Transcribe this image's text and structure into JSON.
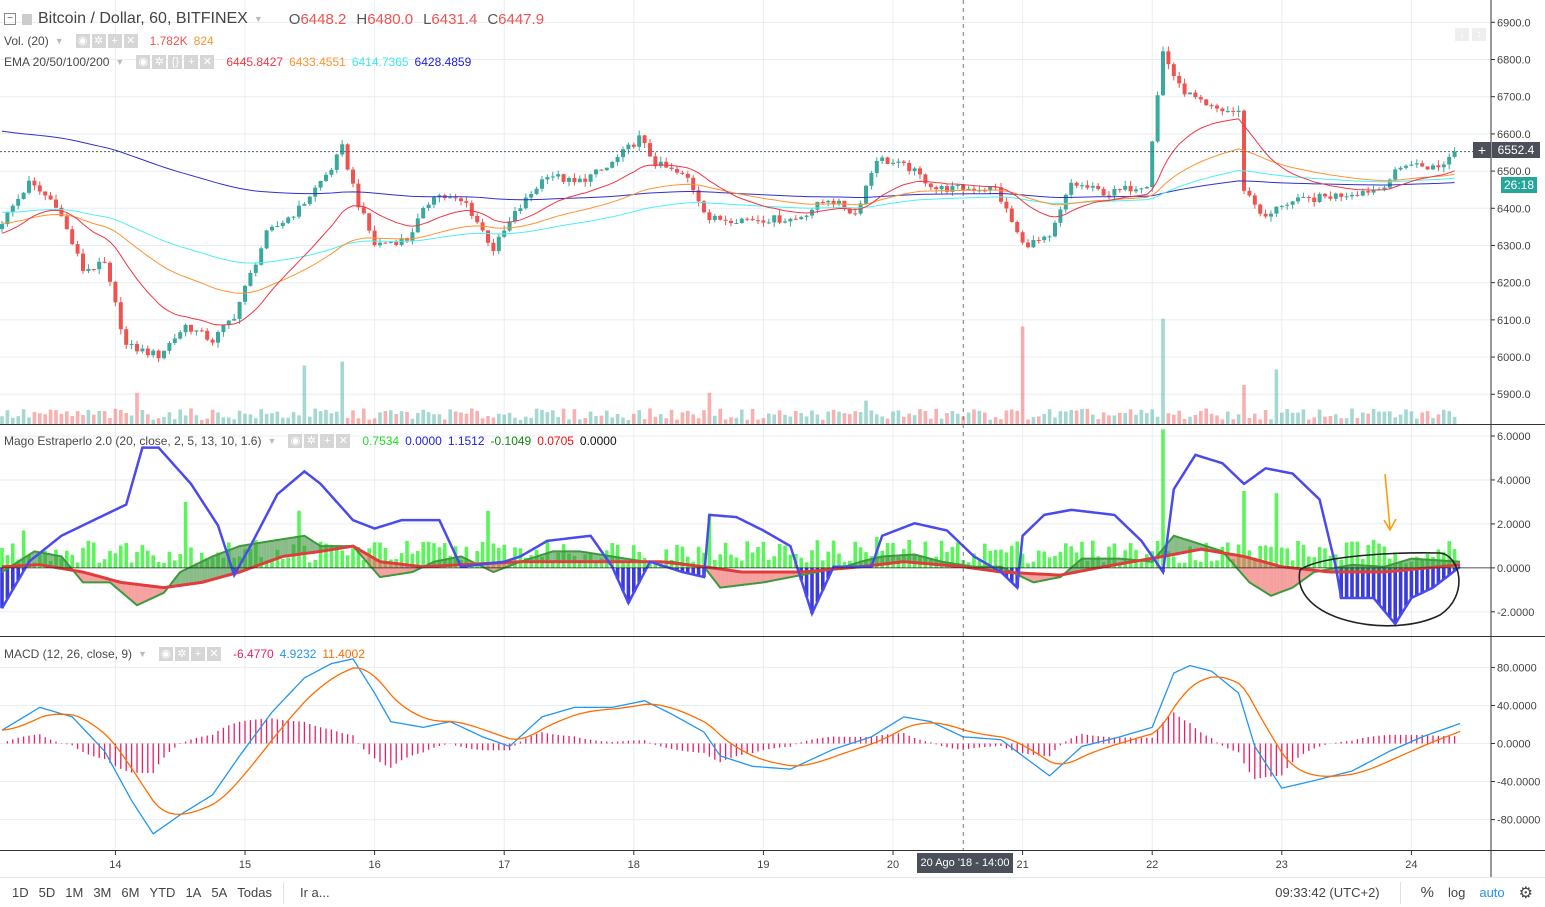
{
  "header": {
    "title": "Bitcoin / Dollar, 60, BITFINEX",
    "o_label": "O",
    "o": "6448.2",
    "h_label": "H",
    "h": "6480.0",
    "l_label": "L",
    "l": "6431.4",
    "c_label": "C",
    "c": "6447.9"
  },
  "volume_legend": {
    "name": "Vol. (20)",
    "v1": "1.782K",
    "v2": "824"
  },
  "ema_legend": {
    "name": "EMA 20/50/100/200",
    "v1": "6445.8427",
    "v2": "6433.4551",
    "v3": "6414.7365",
    "v4": "6428.4859"
  },
  "mago_legend": {
    "name": "Mago Estraperlo 2.0 (20, close, 2, 5, 13, 10, 1.6)",
    "v1": "0.7534",
    "v2": "0.0000",
    "v3": "1.1512",
    "v4": "-0.1049",
    "v5": "0.0705",
    "v6": "0.0000"
  },
  "macd_legend": {
    "name": "MACD (12, 26, close, 9)",
    "v1": "-6.4770",
    "v2": "4.9232",
    "v3": "11.4002"
  },
  "last_price": "6552.4",
  "countdown": "26:18",
  "crosshair_label": "20 Ago '18 - 14:00",
  "toolbar": {
    "ranges": [
      "1D",
      "5D",
      "1M",
      "3M",
      "6M",
      "YTD",
      "1A",
      "5A",
      "Todas"
    ],
    "goto": "Ir a...",
    "clock": "09:33:42 (UTC+2)",
    "percent": "%",
    "log": "log",
    "auto": "auto"
  },
  "colors": {
    "up": "#3aa89c",
    "down": "#ef5350",
    "ema20": "#f23645",
    "ema50": "#ff9330",
    "ema100": "#4df0f0",
    "ema200": "#3030d0",
    "mago_blue": "#4a4aee",
    "mago_green": "#3c9a3c",
    "mago_red": "#e03c3c",
    "mago_bar": "#5af55a",
    "macd": "#2196f3",
    "signal": "#ff6d00",
    "macd_hist": "#e91e63"
  },
  "chart_data": {
    "type": "candlestick",
    "interval_hours": 1,
    "bars": 270,
    "x_ticks": [
      {
        "hour": 21,
        "label": "14"
      },
      {
        "hour": 45,
        "label": "15"
      },
      {
        "hour": 69,
        "label": "16"
      },
      {
        "hour": 93,
        "label": "17"
      },
      {
        "hour": 117,
        "label": "18"
      },
      {
        "hour": 141,
        "label": "19"
      },
      {
        "hour": 165,
        "label": "20"
      },
      {
        "hour": 189,
        "label": "21"
      },
      {
        "hour": 213,
        "label": "22"
      },
      {
        "hour": 237,
        "label": "23"
      },
      {
        "hour": 261,
        "label": "24"
      }
    ],
    "crosshair_hour": 178,
    "price": {
      "ylim": [
        5820,
        6960
      ],
      "ticks": [
        6900,
        6800,
        6700,
        6600,
        6500,
        6400,
        6300,
        6200,
        6100,
        6000,
        5900
      ],
      "close_keypoints": [
        [
          0,
          6344
        ],
        [
          6,
          6467
        ],
        [
          11,
          6412
        ],
        [
          16,
          6235
        ],
        [
          20,
          6249
        ],
        [
          24,
          6030
        ],
        [
          30,
          6004
        ],
        [
          35,
          6085
        ],
        [
          40,
          6044
        ],
        [
          44,
          6112
        ],
        [
          50,
          6330
        ],
        [
          56,
          6398
        ],
        [
          62,
          6508
        ],
        [
          64,
          6562
        ],
        [
          67,
          6412
        ],
        [
          70,
          6303
        ],
        [
          76,
          6317
        ],
        [
          81,
          6439
        ],
        [
          87,
          6412
        ],
        [
          92,
          6290
        ],
        [
          96,
          6385
        ],
        [
          102,
          6494
        ],
        [
          107,
          6467
        ],
        [
          113,
          6508
        ],
        [
          119,
          6589
        ],
        [
          122,
          6521
        ],
        [
          128,
          6480
        ],
        [
          132,
          6371
        ],
        [
          138,
          6371
        ],
        [
          143,
          6371
        ],
        [
          148,
          6371
        ],
        [
          154,
          6426
        ],
        [
          159,
          6385
        ],
        [
          163,
          6535
        ],
        [
          169,
          6508
        ],
        [
          174,
          6453
        ],
        [
          180,
          6453
        ],
        [
          185,
          6453
        ],
        [
          190,
          6303
        ],
        [
          195,
          6317
        ],
        [
          199,
          6467
        ],
        [
          206,
          6439
        ],
        [
          213,
          6467
        ],
        [
          216,
          6821
        ],
        [
          219,
          6726
        ],
        [
          224,
          6671
        ],
        [
          230,
          6657
        ],
        [
          231,
          6453
        ],
        [
          235,
          6371
        ],
        [
          238,
          6412
        ],
        [
          244,
          6426
        ],
        [
          250,
          6439
        ],
        [
          256,
          6453
        ],
        [
          261,
          6521
        ],
        [
          267,
          6508
        ],
        [
          270,
          6552.4
        ]
      ],
      "ema_seeds": {
        "ema20": 6330,
        "ema50": 6360,
        "ema100": 6390,
        "ema200": 6610
      }
    },
    "volume": {
      "unit": "K",
      "base": [
        1,
        4
      ],
      "spikes": [
        [
          25,
          8
        ],
        [
          56,
          15
        ],
        [
          63,
          16
        ],
        [
          131,
          8
        ],
        [
          160,
          6
        ],
        [
          189,
          25
        ],
        [
          215,
          27
        ],
        [
          230,
          10
        ],
        [
          236,
          14
        ]
      ]
    },
    "mago": {
      "ylim": [
        -3.1,
        6.5
      ],
      "ticks": [
        6,
        4,
        2,
        0,
        -2
      ],
      "blue": [
        [
          0,
          -1.84
        ],
        [
          5,
          0.28
        ],
        [
          11,
          1.46
        ],
        [
          19,
          2.41
        ],
        [
          23,
          2.88
        ],
        [
          26,
          5.47
        ],
        [
          29,
          5.47
        ],
        [
          35,
          3.82
        ],
        [
          40,
          1.93
        ],
        [
          43,
          -0.33
        ],
        [
          46,
          0.99
        ],
        [
          51,
          3.35
        ],
        [
          56,
          4.39
        ],
        [
          59,
          3.82
        ],
        [
          65,
          2.17
        ],
        [
          69,
          1.79
        ],
        [
          74,
          2.17
        ],
        [
          81,
          2.17
        ],
        [
          85,
          0.05
        ],
        [
          93,
          0.28
        ],
        [
          96,
          0.52
        ],
        [
          101,
          1.23
        ],
        [
          109,
          1.46
        ],
        [
          113,
          0.05
        ],
        [
          116,
          -1.6
        ],
        [
          120,
          0.28
        ],
        [
          126,
          -0.19
        ],
        [
          130,
          -0.42
        ],
        [
          131,
          2.41
        ],
        [
          136,
          2.31
        ],
        [
          141,
          1.7
        ],
        [
          146,
          0.99
        ],
        [
          150,
          -2.08
        ],
        [
          154,
          0.05
        ],
        [
          161,
          0.05
        ],
        [
          163,
          1.46
        ],
        [
          169,
          2.03
        ],
        [
          175,
          1.7
        ],
        [
          180,
          0.52
        ],
        [
          185,
          -0.19
        ],
        [
          188,
          -0.9
        ],
        [
          189,
          1.46
        ],
        [
          193,
          2.41
        ],
        [
          198,
          2.64
        ],
        [
          206,
          2.41
        ],
        [
          211,
          1.23
        ],
        [
          215,
          -0.19
        ],
        [
          217,
          3.58
        ],
        [
          221,
          5.14
        ],
        [
          226,
          4.76
        ],
        [
          230,
          3.82
        ],
        [
          234,
          4.53
        ],
        [
          239,
          4.29
        ],
        [
          244,
          3.11
        ],
        [
          247,
          0.05
        ],
        [
          248,
          -1.37
        ],
        [
          254,
          -1.37
        ],
        [
          258,
          -2.55
        ],
        [
          261,
          -1.37
        ],
        [
          265,
          -0.9
        ],
        [
          270,
          0.05
        ]
      ],
      "green": [
        [
          0,
          -0.19
        ],
        [
          6,
          0.75
        ],
        [
          11,
          0.52
        ],
        [
          15,
          -0.66
        ],
        [
          20,
          -0.66
        ],
        [
          25,
          -1.7
        ],
        [
          30,
          -1.13
        ],
        [
          33,
          -0.19
        ],
        [
          39,
          0.52
        ],
        [
          44,
          0.99
        ],
        [
          50,
          1.23
        ],
        [
          56,
          1.46
        ],
        [
          59,
          0.99
        ],
        [
          65,
          0.99
        ],
        [
          70,
          -0.42
        ],
        [
          76,
          -0.19
        ],
        [
          80,
          0.28
        ],
        [
          85,
          0.52
        ],
        [
          91,
          -0.19
        ],
        [
          96,
          0.28
        ],
        [
          102,
          0.75
        ],
        [
          107,
          0.75
        ],
        [
          113,
          0.52
        ],
        [
          119,
          0.28
        ],
        [
          124,
          0.28
        ],
        [
          130,
          0.05
        ],
        [
          133,
          -0.9
        ],
        [
          141,
          -0.66
        ],
        [
          148,
          -0.33
        ],
        [
          156,
          0.05
        ],
        [
          159,
          0.28
        ],
        [
          163,
          0.52
        ],
        [
          169,
          0.61
        ],
        [
          174,
          0.28
        ],
        [
          180,
          0.05
        ],
        [
          185,
          0.05
        ],
        [
          191,
          -0.66
        ],
        [
          196,
          -0.42
        ],
        [
          200,
          0.42
        ],
        [
          207,
          0.42
        ],
        [
          213,
          0.28
        ],
        [
          217,
          1.46
        ],
        [
          220,
          1.23
        ],
        [
          226,
          0.75
        ],
        [
          231,
          -0.66
        ],
        [
          235,
          -1.27
        ],
        [
          239,
          -0.9
        ],
        [
          243,
          -0.19
        ],
        [
          250,
          0.14
        ],
        [
          256,
          0.05
        ],
        [
          261,
          0.42
        ],
        [
          270,
          0.28
        ]
      ],
      "red": [
        [
          0,
          0.05
        ],
        [
          7,
          0.14
        ],
        [
          15,
          -0.19
        ],
        [
          22,
          -0.66
        ],
        [
          30,
          -0.9
        ],
        [
          37,
          -0.66
        ],
        [
          44,
          -0.19
        ],
        [
          52,
          0.52
        ],
        [
          59,
          0.75
        ],
        [
          65,
          0.99
        ],
        [
          70,
          0.28
        ],
        [
          78,
          0.05
        ],
        [
          85,
          0.14
        ],
        [
          96,
          0.28
        ],
        [
          111,
          0.28
        ],
        [
          122,
          0.28
        ],
        [
          130,
          0.05
        ],
        [
          137,
          -0.19
        ],
        [
          148,
          -0.19
        ],
        [
          159,
          0.05
        ],
        [
          167,
          0.28
        ],
        [
          178,
          0.05
        ],
        [
          185,
          -0.19
        ],
        [
          196,
          -0.33
        ],
        [
          204,
          0.05
        ],
        [
          215,
          0.52
        ],
        [
          222,
          0.85
        ],
        [
          230,
          0.52
        ],
        [
          237,
          0.05
        ],
        [
          246,
          -0.19
        ],
        [
          256,
          -0.19
        ],
        [
          270,
          0.14
        ]
      ],
      "bar_spikes": [
        [
          4,
          1.7
        ],
        [
          34,
          3.0
        ],
        [
          55,
          2.6
        ],
        [
          90,
          2.6
        ],
        [
          131,
          2.4
        ],
        [
          162,
          1.4
        ],
        [
          215,
          6.3
        ],
        [
          230,
          3.5
        ],
        [
          236,
          3.4
        ]
      ]
    },
    "macd": {
      "ylim": [
        -112,
        112
      ],
      "ticks": [
        80,
        40,
        0,
        -40,
        -80
      ],
      "signal_period": 9,
      "line": [
        [
          0,
          14
        ],
        [
          7,
          38
        ],
        [
          13,
          28
        ],
        [
          19,
          -8
        ],
        [
          24,
          -60
        ],
        [
          28,
          -95
        ],
        [
          33,
          -75
        ],
        [
          39,
          -54
        ],
        [
          44,
          -13
        ],
        [
          50,
          33
        ],
        [
          56,
          69
        ],
        [
          61,
          84
        ],
        [
          65,
          89
        ],
        [
          69,
          53
        ],
        [
          72,
          23
        ],
        [
          78,
          17
        ],
        [
          83,
          23
        ],
        [
          89,
          7
        ],
        [
          94,
          -3
        ],
        [
          100,
          28
        ],
        [
          106,
          38
        ],
        [
          113,
          38
        ],
        [
          119,
          45
        ],
        [
          124,
          31
        ],
        [
          130,
          12
        ],
        [
          133,
          -13
        ],
        [
          139,
          -24
        ],
        [
          146,
          -27
        ],
        [
          154,
          -6
        ],
        [
          161,
          7
        ],
        [
          167,
          28
        ],
        [
          172,
          23
        ],
        [
          178,
          7
        ],
        [
          185,
          4
        ],
        [
          189,
          -13
        ],
        [
          194,
          -34
        ],
        [
          200,
          -3
        ],
        [
          207,
          7
        ],
        [
          213,
          17
        ],
        [
          217,
          74
        ],
        [
          220,
          82
        ],
        [
          224,
          76
        ],
        [
          229,
          53
        ],
        [
          232,
          -3
        ],
        [
          237,
          -47
        ],
        [
          243,
          -39
        ],
        [
          250,
          -29
        ],
        [
          257,
          -8
        ],
        [
          263,
          7
        ],
        [
          270,
          21
        ]
      ]
    }
  }
}
